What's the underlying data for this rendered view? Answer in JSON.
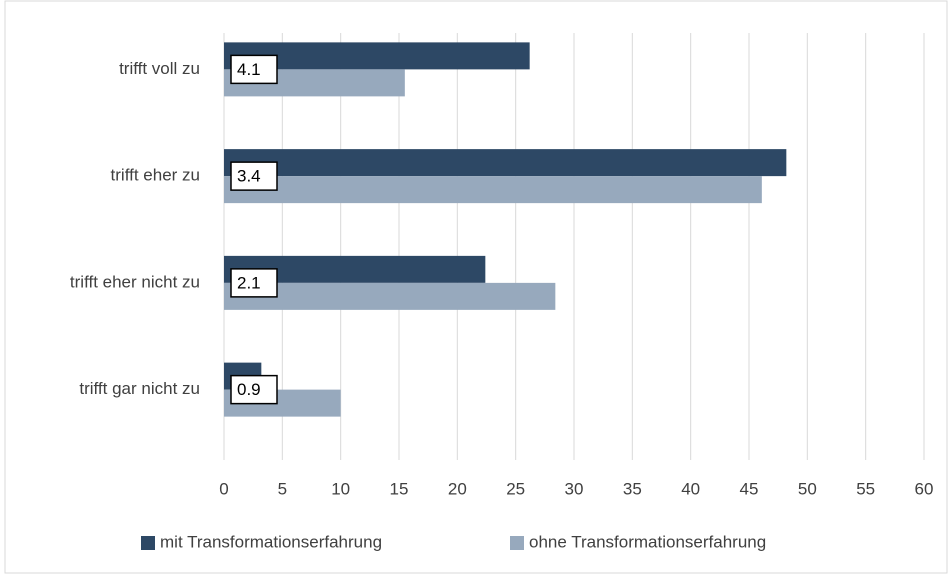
{
  "chart_data": {
    "type": "hbar",
    "categories": [
      "trifft voll zu",
      "trifft eher zu",
      "trifft eher nicht zu",
      "trifft gar nicht zu"
    ],
    "series": [
      {
        "name": "mit Transformationserfahrung",
        "color": "#2d4865",
        "values": [
          26.2,
          48.2,
          22.4,
          3.2
        ]
      },
      {
        "name": "ohne Transformationserfahrung",
        "color": "#97a9bd",
        "values": [
          15.5,
          46.1,
          28.4,
          10.0
        ]
      }
    ],
    "annotations": [
      4.1,
      3.4,
      2.1,
      0.9
    ],
    "xlim": [
      0,
      60
    ],
    "xticks": [
      0,
      5,
      10,
      15,
      20,
      25,
      30,
      35,
      40,
      45,
      50,
      55,
      60
    ],
    "grid": true,
    "legend": "bottom"
  }
}
